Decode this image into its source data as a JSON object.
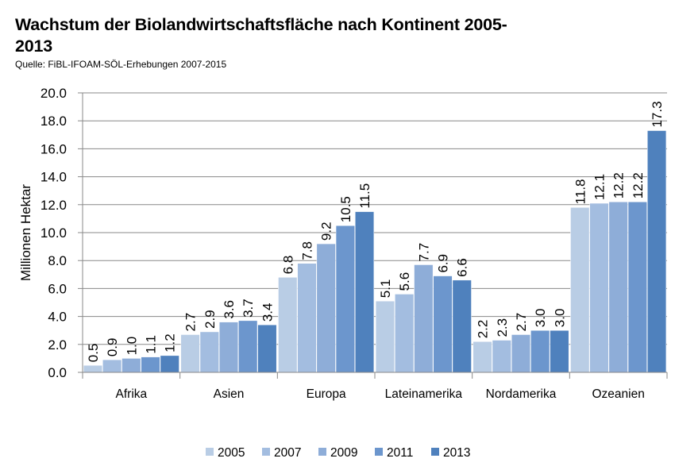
{
  "title": "Wachstum der Biolandwirtschaftsfläche  nach Kontinent  2005-2013",
  "source": "Quelle: FiBL-IFOAM-SÖL-Erhebungen 2007-2015",
  "colors": {
    "2005": "#b9cde5",
    "2007": "#a3bde0",
    "2009": "#8eadd8",
    "2011": "#6c96cd",
    "2013": "#4f81bd"
  },
  "chart_data": {
    "type": "bar",
    "ylabel": "Millionen Hektar",
    "ylim": [
      0,
      20
    ],
    "yticks": [
      "0.0",
      "2.0",
      "4.0",
      "6.0",
      "8.0",
      "10.0",
      "12.0",
      "14.0",
      "16.0",
      "18.0",
      "20.0"
    ],
    "categories": [
      "Afrika",
      "Asien",
      "Europa",
      "Lateinamerika",
      "Nordamerika",
      "Ozeanien"
    ],
    "series": [
      {
        "name": "2005",
        "values": [
          0.5,
          2.7,
          6.8,
          5.1,
          2.2,
          11.8
        ]
      },
      {
        "name": "2007",
        "values": [
          0.9,
          2.9,
          7.8,
          5.6,
          2.3,
          12.1
        ]
      },
      {
        "name": "2009",
        "values": [
          1.0,
          3.6,
          9.2,
          7.7,
          2.7,
          12.2
        ]
      },
      {
        "name": "2011",
        "values": [
          1.1,
          3.7,
          10.5,
          6.9,
          3.0,
          12.2
        ]
      },
      {
        "name": "2013",
        "values": [
          1.2,
          3.4,
          11.5,
          6.6,
          3.0,
          17.3
        ]
      }
    ],
    "data_labels": [
      [
        "0.5",
        "2.7",
        "6.8",
        "5.1",
        "2.2",
        "11.8"
      ],
      [
        "0.9",
        "2.9",
        "7.8",
        "5.6",
        "2.3",
        "12.1"
      ],
      [
        "1.0",
        "3.6",
        "9.2",
        "7.7",
        "2.7",
        "12.2"
      ],
      [
        "1.1",
        "3.7",
        "10.5",
        "6.9",
        "3.0",
        "12.2"
      ],
      [
        "1.2",
        "3.4",
        "11.5",
        "6.6",
        "3.0",
        "17.3"
      ]
    ],
    "grid": "horizontal",
    "legend": "bottom"
  }
}
